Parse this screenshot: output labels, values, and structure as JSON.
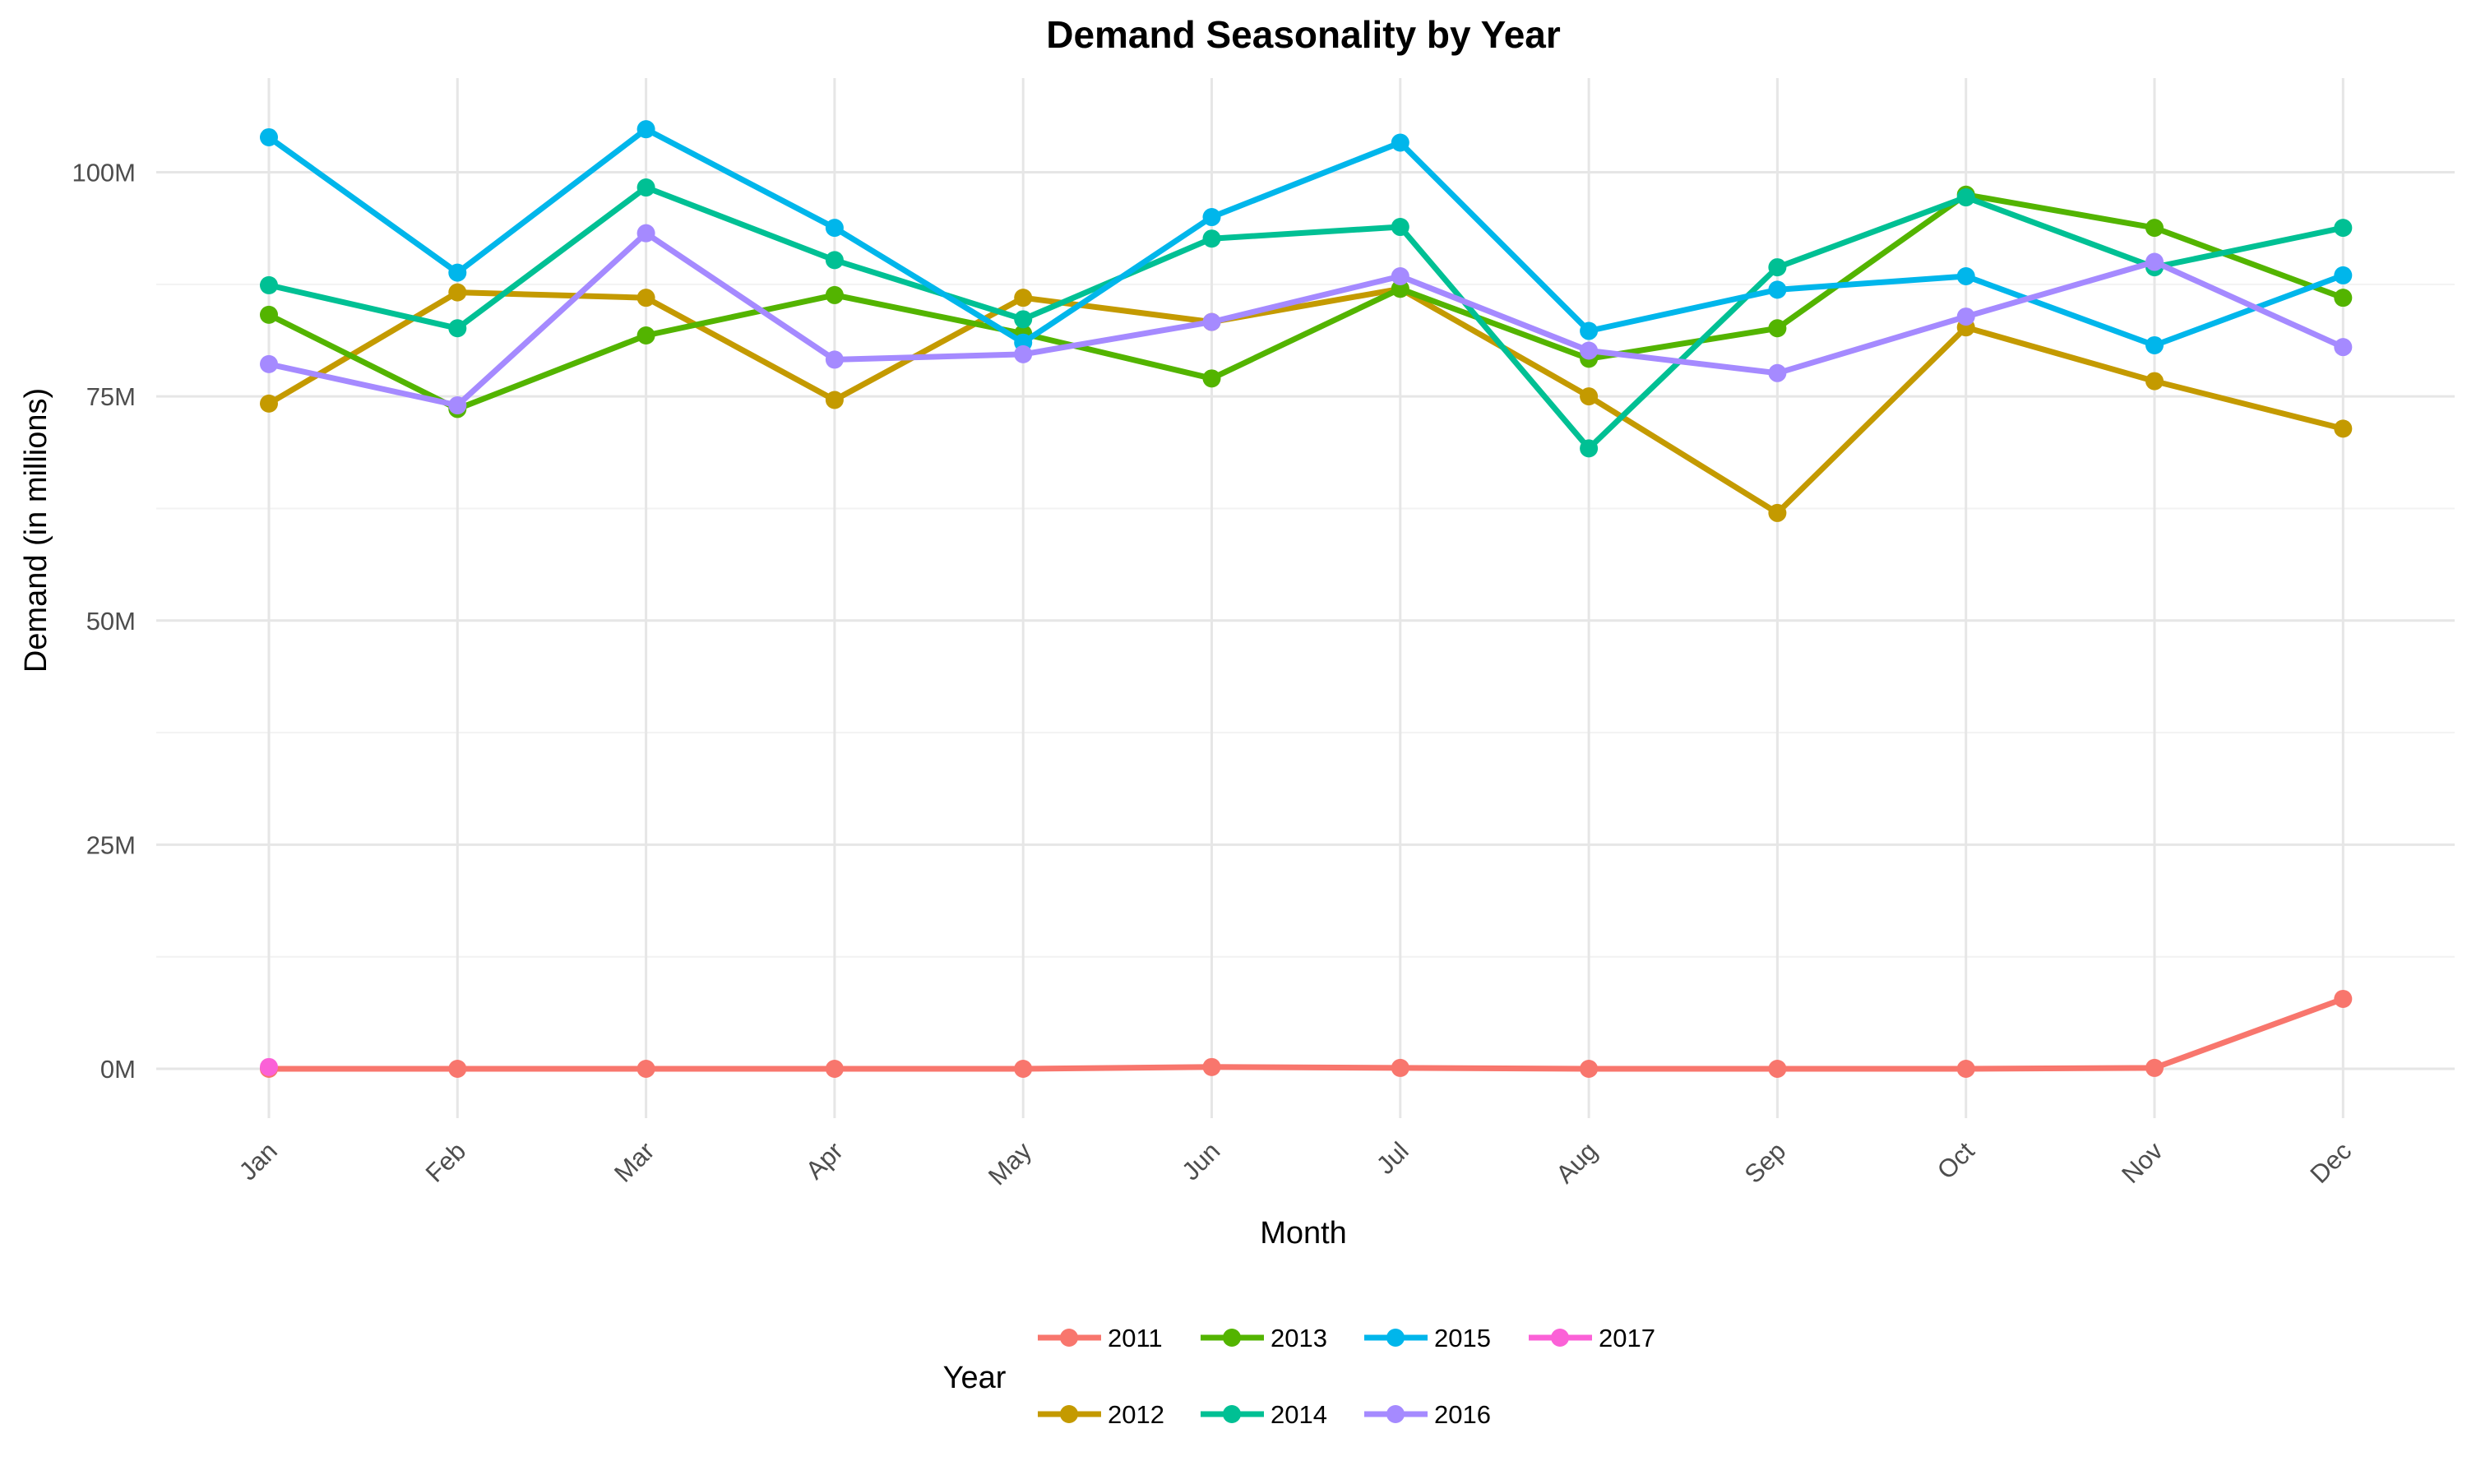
{
  "chart_data": {
    "type": "line",
    "title": "Demand Seasonality by Year",
    "xlabel": "Month",
    "ylabel": "Demand (in millions)",
    "categories": [
      "Jan",
      "Feb",
      "Mar",
      "Apr",
      "May",
      "Jun",
      "Jul",
      "Aug",
      "Sep",
      "Oct",
      "Nov",
      "Dec"
    ],
    "y_ticks": [
      {
        "value": 0,
        "label": "0M"
      },
      {
        "value": 25,
        "label": "25M"
      },
      {
        "value": 50,
        "label": "50M"
      },
      {
        "value": 75,
        "label": "75M"
      },
      {
        "value": 100,
        "label": "100M"
      }
    ],
    "ylim": [
      -5.5,
      110.5
    ],
    "grid": true,
    "legend": {
      "title": "Year",
      "position": "bottom"
    },
    "series": [
      {
        "name": "2011",
        "color": "#F8766D",
        "values": [
          0,
          0,
          0,
          0,
          0,
          0.2,
          0.1,
          0,
          0,
          0,
          0.1,
          7.8
        ]
      },
      {
        "name": "2012",
        "color": "#C49A00",
        "values": [
          74.2,
          86.6,
          86.0,
          74.6,
          86.0,
          83.3,
          87.0,
          75.0,
          62.0,
          82.7,
          76.7,
          71.4
        ]
      },
      {
        "name": "2013",
        "color": "#53B400",
        "values": [
          84.1,
          73.6,
          81.8,
          86.3,
          82.0,
          77.0,
          87.0,
          79.2,
          82.6,
          97.5,
          93.8,
          86.0
        ]
      },
      {
        "name": "2014",
        "color": "#00C094",
        "values": [
          87.4,
          82.6,
          98.3,
          90.2,
          83.6,
          92.6,
          93.9,
          69.2,
          89.4,
          97.2,
          89.4,
          93.8
        ]
      },
      {
        "name": "2015",
        "color": "#00B6EB",
        "values": [
          103.9,
          88.8,
          104.8,
          93.8,
          81.0,
          95.0,
          103.3,
          82.3,
          86.9,
          88.4,
          80.7,
          88.5
        ]
      },
      {
        "name": "2016",
        "color": "#A58AFF",
        "values": [
          78.6,
          74.0,
          93.2,
          79.1,
          79.7,
          83.3,
          88.4,
          80.1,
          77.6,
          83.9,
          90.0,
          80.5
        ]
      },
      {
        "name": "2017",
        "color": "#FB61D7",
        "values": [
          0.2,
          null,
          null,
          null,
          null,
          null,
          null,
          null,
          null,
          null,
          null,
          null
        ]
      }
    ]
  }
}
